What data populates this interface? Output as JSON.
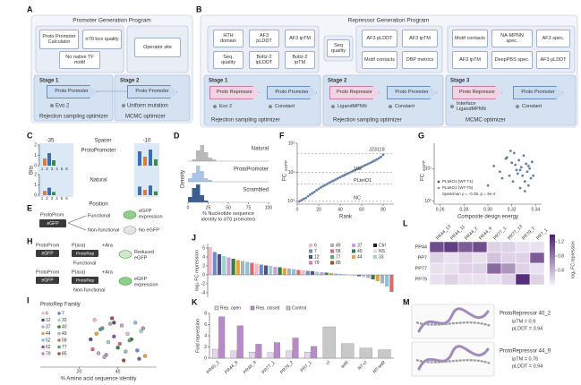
{
  "A": {
    "label": "A",
    "title": "Promoter Generation Program",
    "filters": [
      "Proto Promoter Calculator",
      "σ70 box quality",
      "No native TF motif",
      "Operator site"
    ],
    "stages": [
      "Stage 1",
      "Stage 2"
    ],
    "nodes": [
      "Proto Promoter",
      "Proto Promoter"
    ],
    "generators": [
      "Evo 2",
      "Uniform mutation"
    ],
    "optimizers": [
      "Rejection sampling optimizer",
      "MCMC optimizer"
    ]
  },
  "B": {
    "label": "B",
    "title": "Repressor Generation Program",
    "filters": [
      "HTH domain",
      "AF3 pLDDT",
      "AF3 ipTM",
      "Seq. quality",
      "Boltz-2 ipLDDT",
      "Boltz-2 ipTM",
      "Seq quality",
      "AF3 pLDDT",
      "AF3 ipTM",
      "Motif contacts",
      "DBP metrics",
      "Motif contacts",
      "NA-MPNN spec.",
      "AF3 spec.",
      "AF3 ipTM",
      "DeepPBS spec.",
      "AF3 pLDDT"
    ],
    "stages": [
      "Stage 1",
      "Stage 2",
      "Stage 3"
    ],
    "nodes": [
      "Proto Repressor",
      "Proto Promoter",
      "Proto Repressor",
      "Proto Promoter",
      "Proto Repressor",
      "Proto Promoter"
    ],
    "generators": [
      "Evo 2",
      "Constant",
      "LigandMPNN",
      "Constant",
      "Interface LigandMPNN",
      "Constant"
    ],
    "optimizers": [
      "Rejection sampling optimizer",
      "Rejection sampling optimizer",
      "MCMC optimizer"
    ]
  },
  "C": {
    "label": "C",
    "regions": [
      "-35",
      "Spacer",
      "-10"
    ],
    "logos": [
      "ProtoPromoter",
      "Natural"
    ],
    "y_label": "Bits",
    "x_label": "Position",
    "yticks": [
      0,
      1,
      2
    ],
    "positions": [
      1,
      2,
      3,
      4,
      5,
      6
    ]
  },
  "D": {
    "label": "D",
    "type": "histogram",
    "bins": [
      0,
      5,
      10,
      15,
      20,
      25,
      30,
      35,
      40
    ],
    "series": [
      {
        "name": "Natural",
        "color": "#b9b9b9",
        "values": [
          0,
          0.01,
          0.06,
          0.09,
          0.05,
          0.02,
          0.01,
          0
        ]
      },
      {
        "name": "ProtoPromoter",
        "color": "#a9c4e4",
        "values": [
          0.02,
          0.05,
          0.09,
          0.06,
          0.02,
          0.01,
          0,
          0
        ]
      },
      {
        "name": "Scrambled",
        "color": "#3b5d8f",
        "values": [
          0.03,
          0.08,
          0.1,
          0.04,
          0.01,
          0,
          0,
          0
        ]
      }
    ],
    "ylim": [
      0,
      0.1
    ],
    "xlim": [
      0,
      100
    ],
    "xticks": [
      0,
      25,
      50,
      75,
      100
    ],
    "y_label": "Density",
    "x_label": "% Nucleotide sequence identity to σ70 promoters"
  },
  "E": {
    "label": "E",
    "construct": "ProtoProm",
    "reporter": "eGFP",
    "outcomes": [
      "Functional",
      "Non-functional"
    ],
    "results": [
      "eGFP expression",
      "No eGFP"
    ]
  },
  "F": {
    "label": "F",
    "type": "scatter",
    "color": "#3d5f95",
    "log_y": true,
    "x": [
      2,
      4,
      6,
      8,
      10,
      12,
      14,
      16,
      18,
      20,
      22,
      24,
      26,
      28,
      30,
      32,
      34,
      36,
      38,
      40,
      42,
      44,
      46,
      48,
      50,
      52,
      54,
      56,
      58,
      60,
      62,
      64,
      66,
      68,
      70,
      72,
      74,
      76,
      78,
      80
    ],
    "values": [
      1.0,
      1.1,
      1.2,
      1.3,
      1.5,
      1.7,
      1.9,
      2.1,
      2.4,
      2.7,
      3.0,
      3.3,
      3.6,
      4.0,
      4.4,
      4.8,
      5.2,
      5.7,
      6.2,
      6.8,
      7.4,
      8.0,
      8.7,
      9.4,
      10.2,
      11.0,
      12.0,
      13.0,
      14.1,
      15.3,
      16.6,
      18.0,
      19.5,
      21.2,
      23.0,
      25.0,
      27.5,
      30.5,
      34,
      40
    ],
    "ylim": [
      0.8,
      100
    ],
    "yticks": [
      {
        "value": 1,
        "label": "10⁰"
      },
      {
        "value": 10,
        "label": "10¹"
      },
      {
        "value": 100,
        "label": "10²"
      }
    ],
    "xlim": [
      0,
      90
    ],
    "xticks": [
      0,
      20,
      40,
      60,
      80
    ],
    "x_label": "Rank",
    "y_label": "FC",
    "y_label_sub": "eGFP",
    "reference_lines": [
      {
        "label": "J23119",
        "value": 45
      },
      {
        "label": "10x",
        "value": 10
      },
      {
        "label": "PLtetO1",
        "value": 4
      },
      {
        "label": "NC",
        "value": 1
      }
    ]
  },
  "G": {
    "label": "G",
    "type": "scatter",
    "color": "#3d5f95",
    "log_y": true,
    "x": [
      0.3,
      0.305,
      0.31,
      0.312,
      0.315,
      0.318,
      0.32,
      0.321,
      0.322,
      0.324,
      0.325,
      0.326,
      0.327,
      0.328,
      0.329,
      0.33,
      0.331,
      0.332,
      0.333,
      0.334,
      0.335,
      0.336,
      0.337,
      0.338,
      0.316,
      0.323,
      0.319,
      0.327,
      0.331,
      0.334
    ],
    "values": [
      3,
      12,
      8,
      5,
      20,
      6,
      15,
      4,
      30,
      9,
      7,
      18,
      2.5,
      11,
      6,
      25,
      4,
      14,
      8,
      3,
      10,
      5,
      16,
      6,
      22,
      13,
      35,
      9,
      2,
      12
    ],
    "ylim": [
      0.8,
      60
    ],
    "yticks": [
      {
        "value": 1,
        "label": "10⁰"
      },
      {
        "value": 10,
        "label": "10¹"
      }
    ],
    "xlim": [
      0.255,
      0.345
    ],
    "xticks": [
      0.26,
      0.28,
      {
        "value": 0.3,
        "label": "0.30"
      },
      0.32,
      0.34
    ],
    "x_label": "Composite design energy",
    "y_label": "FC",
    "y_label_sub": "eGFP",
    "legend": [
      "PLtetO1 (WT-T1)",
      "PLtetO1 (WT-T5)",
      "Spearman ρ = -0.36, p = 3e-4"
    ]
  },
  "H": {
    "label": "H",
    "rows": [
      {
        "promoter": "ProtoProm",
        "reporter": "eGFP",
        "inducible": "P(ara)",
        "repressor": "ProtoRep",
        "inducer": "+Ara",
        "outcome": "Functional",
        "result": "Reduced eGFP"
      },
      {
        "promoter": "ProtoProm",
        "reporter": "eGFP",
        "inducible": "P(ara)",
        "repressor": "ProtoRep",
        "inducer": "+Ara",
        "outcome": "Non-functional",
        "result": "eGFP expression"
      }
    ]
  },
  "I": {
    "label": "I",
    "type": "scatter",
    "title": "ProtoRep Family",
    "x_label": "% Amino acid sequence identity",
    "xlim": [
      0,
      60
    ],
    "xticks": [
      20,
      40
    ],
    "ylim": [
      0,
      10
    ],
    "series": [
      {
        "name": "6",
        "color": "#f2b8c6",
        "x": [
          28,
          45
        ],
        "values": [
          8.5,
          6
        ]
      },
      {
        "name": "7",
        "color": "#6a8fc7",
        "x": [
          32,
          50
        ],
        "values": [
          7,
          3
        ]
      },
      {
        "name": "12",
        "color": "#4d4d8f",
        "x": [
          26,
          38
        ],
        "values": [
          5,
          8
        ]
      },
      {
        "name": "33",
        "color": "#9fd3c7",
        "x": [
          35,
          52
        ],
        "values": [
          4.5,
          6.5
        ]
      },
      {
        "name": "37",
        "color": "#c9a0dc",
        "x": [
          30,
          42
        ],
        "values": [
          2.5,
          7.5
        ]
      },
      {
        "name": "40",
        "color": "#3a7d44",
        "x": [
          40,
          47
        ],
        "values": [
          3.5,
          5
        ]
      },
      {
        "name": "44",
        "color": "#e8a33d",
        "x": [
          29,
          54
        ],
        "values": [
          6,
          2
        ]
      },
      {
        "name": "49",
        "color": "#b0b0b0",
        "x": [
          36,
          44
        ],
        "values": [
          7.8,
          2.8
        ]
      },
      {
        "name": "52",
        "color": "#8bc1e0",
        "x": [
          33,
          49
        ],
        "values": [
          1.8,
          8
        ]
      },
      {
        "name": "58",
        "color": "#d96b6b",
        "x": [
          27,
          41
        ],
        "values": [
          3.2,
          4.2
        ]
      },
      {
        "name": "62",
        "color": "#7b5ea7",
        "x": [
          38,
          51
        ],
        "values": [
          5.5,
          1.5
        ]
      },
      {
        "name": "77",
        "color": "#5aa469",
        "x": [
          31,
          46
        ],
        "values": [
          6.8,
          4.8
        ]
      },
      {
        "name": "79",
        "color": "#e07bb0",
        "x": [
          34,
          53
        ],
        "values": [
          2.2,
          7
        ]
      },
      {
        "name": "85",
        "color": "#a0522d",
        "x": [
          37,
          43
        ],
        "values": [
          8.8,
          1.2
        ]
      }
    ]
  },
  "J": {
    "label": "J",
    "type": "bar",
    "y_label": "log₂ FC repression",
    "ylim": [
      -5,
      7
    ],
    "yticks": [
      -4,
      -2,
      0,
      2,
      4,
      6
    ],
    "legend": [
      {
        "name": "6",
        "color": "#f2b8c6"
      },
      {
        "name": "49",
        "color": "#b0b0b0"
      },
      {
        "name": "37",
        "color": "#c9a0dc"
      },
      {
        "name": "Ctrl",
        "color": "#222222"
      },
      {
        "name": "7",
        "color": "#6a8fc7"
      },
      {
        "name": "58",
        "color": "#d96b6b"
      },
      {
        "name": "40",
        "color": "#3a7d44"
      },
      {
        "name": "NS",
        "color": "#dddddd"
      },
      {
        "name": "12",
        "color": "#4d4d8f"
      },
      {
        "name": "77",
        "color": "#5aa469"
      },
      {
        "name": "44",
        "color": "#e8a33d"
      },
      {
        "name": "33",
        "color": "#9fd3c7"
      },
      {
        "name": "79",
        "color": "#e07bb0"
      },
      {
        "name": "85",
        "color": "#a0522d"
      }
    ],
    "values": [
      6.2,
      5.1,
      4.6,
      4.2,
      3.9,
      3.6,
      3.3,
      3.1,
      2.9,
      2.7,
      2.5,
      2.3,
      2.1,
      2.0,
      1.8,
      1.7,
      1.5,
      1.4,
      1.3,
      1.1,
      1.0,
      0.9,
      0.8,
      0.7,
      0.6,
      0.5,
      0.4,
      0.3,
      0.2,
      0.1,
      0.0,
      -0.1,
      -0.3,
      -0.5,
      -0.7,
      -1.0,
      -1.4,
      -1.9,
      -2.6,
      -3.8
    ],
    "colors": [
      "#f2b8c6",
      "#6a8fc7",
      "#4d4d8f",
      "#9fd3c7",
      "#c9a0dc",
      "#3a7d44",
      "#e8a33d",
      "#b0b0b0",
      "#8bc1e0",
      "#d96b6b",
      "#f2b8c6",
      "#6a8fc7",
      "#4d4d8f",
      "#9fd3c7",
      "#c9a0dc",
      "#3a7d44",
      "#e8a33d",
      "#b0b0b0",
      "#8bc1e0",
      "#d96b6b",
      "#f2b8c6",
      "#6a8fc7",
      "#4d4d8f",
      "#9fd3c7",
      "#c9a0dc",
      "#3a7d44",
      "#e8a33d",
      "#b0b0b0",
      "#8bc1e0",
      "#d96b6b",
      "#f2b8c6",
      "#6a8fc7",
      "#4d4d8f",
      "#9fd3c7",
      "#c9a0dc",
      "#3a7d44",
      "#e8a33d",
      "#b0b0b0",
      "#8bc1e0",
      "#d96b6b"
    ]
  },
  "K": {
    "label": "K",
    "type": "bar",
    "y_label": "Fold repression",
    "ylim": [
      0,
      8
    ],
    "yticks": [
      0,
      2,
      4,
      6,
      8
    ],
    "categories": [
      "PR40_2",
      "PR44_9",
      "PR49_4",
      "PR77_1",
      "PR79_2",
      "PR7_1",
      "cI",
      "tetR",
      "NT-cI",
      "NT-tetR"
    ],
    "series": [
      {
        "name": "Rep. open",
        "color": "#e6d4ee",
        "values": [
          1.6,
          1.3,
          1.1,
          1.0,
          1.3,
          1.1,
          null,
          null,
          null,
          null
        ]
      },
      {
        "name": "Rep. closed",
        "color": "#b88ac8",
        "values": [
          7.4,
          5.8,
          2.5,
          2.8,
          3.6,
          2.1,
          null,
          null,
          null,
          null
        ]
      },
      {
        "name": "Control",
        "color": "#c8c8c8",
        "values": [
          null,
          null,
          null,
          null,
          null,
          null,
          5.6,
          2.6,
          1.8,
          1.5
        ]
      }
    ]
  },
  "L": {
    "label": "L",
    "type": "heatmap",
    "columns": [
      "PR44_13",
      "PR44_11",
      "PR44_2",
      "PR44_9",
      "PR77_1",
      "PR77_13",
      "PR79_2",
      "PR7_1"
    ],
    "rows": [
      "PP44",
      "PP7",
      "PP77",
      "PP79"
    ],
    "values": [
      [
        1.1,
        1.2,
        1.0,
        1.1,
        0.2,
        0.2,
        0.1,
        0.1
      ],
      [
        0.2,
        0.1,
        0.2,
        0.1,
        0.3,
        0.2,
        0.2,
        1.0
      ],
      [
        0.1,
        0.1,
        0.2,
        0.2,
        0.9,
        0.6,
        0.2,
        0.1
      ],
      [
        0.1,
        0.2,
        0.1,
        0.1,
        0.1,
        0.2,
        1.3,
        0.2
      ]
    ],
    "clim": [
      0,
      1.4
    ],
    "colorbar_ticks": [
      0.4,
      0.8,
      1.2
    ],
    "colorbar_label": "log₂ FC repression"
  },
  "M": {
    "label": "M",
    "captions": [
      {
        "name": "ProtoRepressor 40_2",
        "iptm": "ipTM = 0.9",
        "plddt": "pLDDT = 0.94"
      },
      {
        "name": "ProtoRepressor 44_9",
        "iptm": "ipTM = 0.76",
        "plddt": "pLDDT = 0.94"
      }
    ]
  }
}
